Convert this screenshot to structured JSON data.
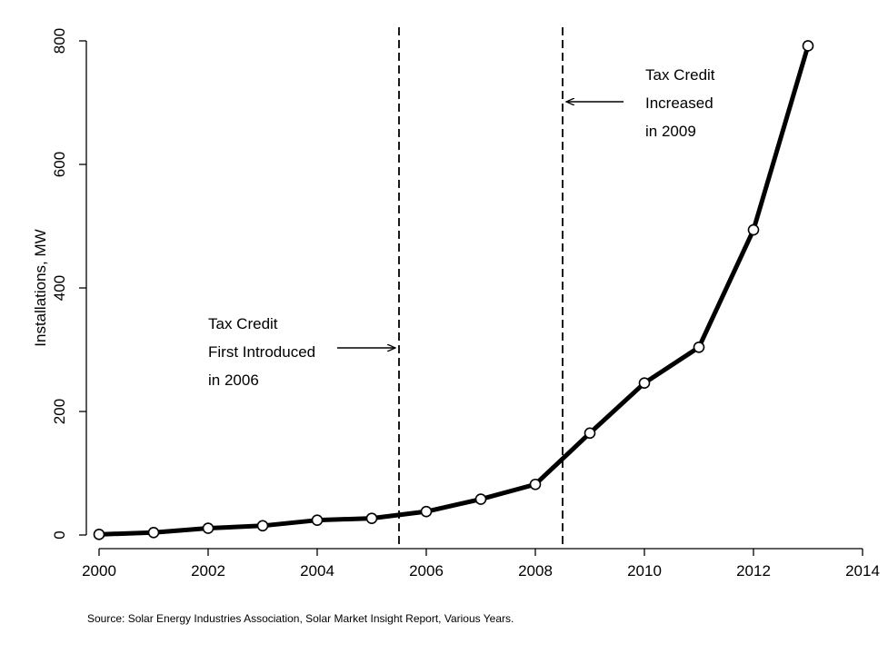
{
  "chart_data": {
    "type": "line",
    "xlabel": "",
    "ylabel": "Installations, MW",
    "xlim": [
      2000,
      2014
    ],
    "ylim": [
      0,
      800
    ],
    "x_ticks": [
      2000,
      2002,
      2004,
      2006,
      2008,
      2010,
      2012,
      2014
    ],
    "y_ticks": [
      0,
      200,
      400,
      600,
      800
    ],
    "grid": false,
    "series": [
      {
        "x": [
          2000,
          2001,
          2002,
          2003,
          2004,
          2005,
          2006,
          2007,
          2008,
          2009,
          2010,
          2011,
          2012,
          2013
        ],
        "values": [
          1,
          4,
          11,
          15,
          24,
          27,
          38,
          58,
          82,
          165,
          246,
          304,
          494,
          792
        ],
        "color": "#000000",
        "marker": "hollow-circle"
      }
    ],
    "reference_lines": [
      {
        "x": 2005.5,
        "style": "dashed"
      },
      {
        "x": 2008.5,
        "style": "dashed"
      }
    ],
    "annotations": [
      {
        "lines": [
          "Tax Credit",
          "First Introduced",
          "in 2006"
        ],
        "arrow_to_x": 2005.5,
        "arrow_direction": "right"
      },
      {
        "lines": [
          "Tax Credit",
          "Increased",
          "in 2009"
        ],
        "arrow_to_x": 2008.5,
        "arrow_direction": "left"
      }
    ],
    "note": "Source: Solar Energy Industries Association, Solar Market Insight Report, Various Years."
  }
}
